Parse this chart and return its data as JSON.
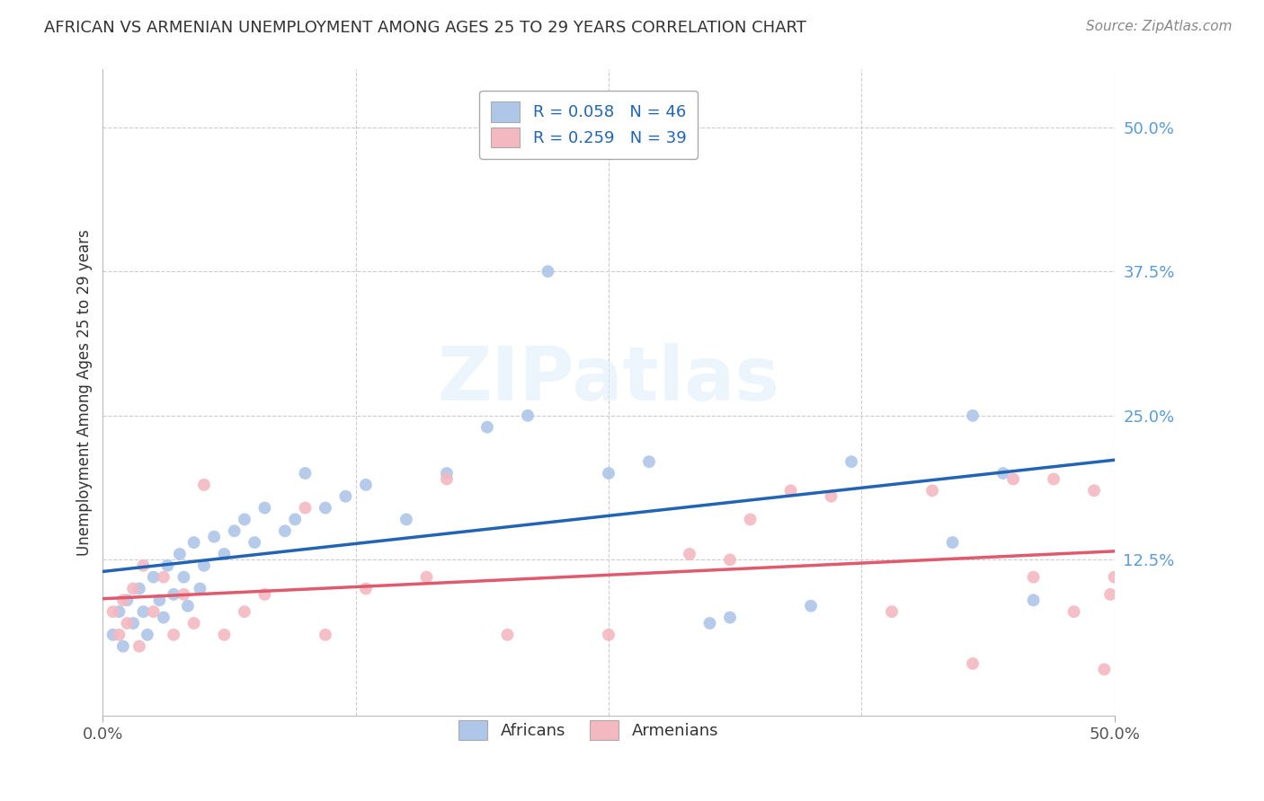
{
  "title": "AFRICAN VS ARMENIAN UNEMPLOYMENT AMONG AGES 25 TO 29 YEARS CORRELATION CHART",
  "source": "Source: ZipAtlas.com",
  "ylabel": "Unemployment Among Ages 25 to 29 years",
  "xlim": [
    0.0,
    0.5
  ],
  "ylim": [
    -0.01,
    0.55
  ],
  "african_R": 0.058,
  "african_N": 46,
  "armenian_R": 0.259,
  "armenian_N": 39,
  "african_color": "#aec6e8",
  "armenian_color": "#f4b8c1",
  "trend_african_color": "#2264b4",
  "trend_armenian_color": "#e05a6e",
  "background_color": "#ffffff",
  "grid_color": "#cccccc",
  "african_x": [
    0.005,
    0.008,
    0.01,
    0.012,
    0.015,
    0.018,
    0.02,
    0.022,
    0.025,
    0.028,
    0.03,
    0.032,
    0.035,
    0.038,
    0.04,
    0.042,
    0.045,
    0.048,
    0.05,
    0.055,
    0.06,
    0.065,
    0.07,
    0.075,
    0.08,
    0.09,
    0.095,
    0.1,
    0.11,
    0.12,
    0.13,
    0.15,
    0.17,
    0.19,
    0.21,
    0.22,
    0.25,
    0.27,
    0.3,
    0.31,
    0.35,
    0.37,
    0.42,
    0.43,
    0.445,
    0.46
  ],
  "african_y": [
    0.06,
    0.08,
    0.05,
    0.09,
    0.07,
    0.1,
    0.08,
    0.06,
    0.11,
    0.09,
    0.075,
    0.12,
    0.095,
    0.13,
    0.11,
    0.085,
    0.14,
    0.1,
    0.12,
    0.145,
    0.13,
    0.15,
    0.16,
    0.14,
    0.17,
    0.15,
    0.16,
    0.2,
    0.17,
    0.18,
    0.19,
    0.16,
    0.2,
    0.24,
    0.25,
    0.375,
    0.2,
    0.21,
    0.07,
    0.075,
    0.085,
    0.21,
    0.14,
    0.25,
    0.2,
    0.09
  ],
  "armenian_x": [
    0.005,
    0.008,
    0.01,
    0.012,
    0.015,
    0.018,
    0.02,
    0.025,
    0.03,
    0.035,
    0.04,
    0.045,
    0.05,
    0.06,
    0.07,
    0.08,
    0.1,
    0.11,
    0.13,
    0.16,
    0.17,
    0.2,
    0.25,
    0.29,
    0.31,
    0.32,
    0.34,
    0.36,
    0.39,
    0.41,
    0.43,
    0.45,
    0.46,
    0.47,
    0.48,
    0.49,
    0.495,
    0.498,
    0.5
  ],
  "armenian_y": [
    0.08,
    0.06,
    0.09,
    0.07,
    0.1,
    0.05,
    0.12,
    0.08,
    0.11,
    0.06,
    0.095,
    0.07,
    0.19,
    0.06,
    0.08,
    0.095,
    0.17,
    0.06,
    0.1,
    0.11,
    0.195,
    0.06,
    0.06,
    0.13,
    0.125,
    0.16,
    0.185,
    0.18,
    0.08,
    0.185,
    0.035,
    0.195,
    0.11,
    0.195,
    0.08,
    0.185,
    0.03,
    0.095,
    0.11
  ]
}
